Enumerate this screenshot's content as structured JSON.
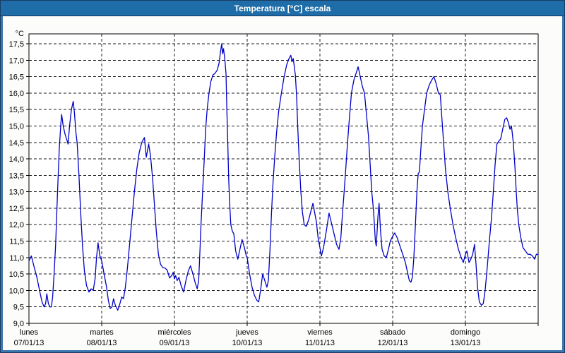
{
  "window": {
    "title": "Temperatura [°C] escala"
  },
  "colors": {
    "titlebar_bg": "#1E6DA8",
    "title_text": "#FFFFFF",
    "frame_outer": "#1A3C63",
    "frame_inner": "#3B76AD",
    "content_bg": "#FCFCFA",
    "plot_bg": "#FFFFFF",
    "plot_border": "#000000",
    "grid_line": "#1C1C1C",
    "axis_text": "#000000",
    "series_line": "#0000C8"
  },
  "chart_data": {
    "type": "line",
    "title": "Temperatura [°C] escala",
    "ylabel": "°C",
    "ylim": [
      9.0,
      17.8
    ],
    "grid": "dashed",
    "legend": "none",
    "y_ticks": [
      {
        "v": 9.0,
        "label": "9,0"
      },
      {
        "v": 9.5,
        "label": "9,5"
      },
      {
        "v": 10.0,
        "label": "10,0"
      },
      {
        "v": 10.5,
        "label": "10,5"
      },
      {
        "v": 11.0,
        "label": "11,0"
      },
      {
        "v": 11.5,
        "label": "11,5"
      },
      {
        "v": 12.0,
        "label": "12,0"
      },
      {
        "v": 12.5,
        "label": "12,5"
      },
      {
        "v": 13.0,
        "label": "13,0"
      },
      {
        "v": 13.5,
        "label": "13,5"
      },
      {
        "v": 14.0,
        "label": "14,0"
      },
      {
        "v": 14.5,
        "label": "14,5"
      },
      {
        "v": 15.0,
        "label": "15,0"
      },
      {
        "v": 15.5,
        "label": "15,5"
      },
      {
        "v": 16.0,
        "label": "16,0"
      },
      {
        "v": 16.5,
        "label": "16,5"
      },
      {
        "v": 17.0,
        "label": "17,0"
      },
      {
        "v": 17.5,
        "label": "17,5"
      }
    ],
    "x_axis": {
      "hours_total": 168,
      "days": [
        {
          "name": "lunes",
          "date": "07/01/13"
        },
        {
          "name": "martes",
          "date": "08/01/13"
        },
        {
          "name": "miércoles",
          "date": "09/01/13"
        },
        {
          "name": "jueves",
          "date": "10/01/13"
        },
        {
          "name": "viernes",
          "date": "11/01/13"
        },
        {
          "name": "sábado",
          "date": "12/01/13"
        },
        {
          "name": "domingo",
          "date": "13/01/13"
        }
      ]
    },
    "series": [
      {
        "name": "Temperatura [°C]",
        "color": "#0000C8",
        "points_hours_temp": [
          [
            0,
            10.9
          ],
          [
            0.8,
            11.05
          ],
          [
            1.6,
            10.75
          ],
          [
            2.6,
            10.4
          ],
          [
            3.6,
            9.95
          ],
          [
            4.3,
            9.65
          ],
          [
            5,
            9.5
          ],
          [
            5.5,
            9.6
          ],
          [
            5.9,
            9.9
          ],
          [
            6.4,
            9.6
          ],
          [
            6.9,
            9.5
          ],
          [
            7.4,
            9.5
          ],
          [
            7.8,
            9.8
          ],
          [
            8.3,
            10.5
          ],
          [
            8.8,
            11.4
          ],
          [
            9.4,
            12.9
          ],
          [
            10,
            14.3
          ],
          [
            10.5,
            15.05
          ],
          [
            10.8,
            15.35
          ],
          [
            11.3,
            15.0
          ],
          [
            11.9,
            14.75
          ],
          [
            12.6,
            14.55
          ],
          [
            12.9,
            14.45
          ],
          [
            13.4,
            15.0
          ],
          [
            14,
            15.5
          ],
          [
            14.6,
            15.75
          ],
          [
            15,
            15.4
          ],
          [
            15.5,
            14.8
          ],
          [
            15.9,
            14.5
          ],
          [
            16.5,
            13.5
          ],
          [
            17.1,
            12.3
          ],
          [
            17.7,
            11.3
          ],
          [
            18.3,
            10.6
          ],
          [
            19,
            10.15
          ],
          [
            19.8,
            9.95
          ],
          [
            20.5,
            10.05
          ],
          [
            21.2,
            10.0
          ],
          [
            21.8,
            10.35
          ],
          [
            22.3,
            11.0
          ],
          [
            22.8,
            11.45
          ],
          [
            23.4,
            11.05
          ],
          [
            24,
            10.9
          ],
          [
            24.8,
            10.5
          ],
          [
            25.6,
            10.1
          ],
          [
            26.2,
            9.7
          ],
          [
            26.8,
            9.45
          ],
          [
            27.4,
            9.5
          ],
          [
            27.9,
            9.75
          ],
          [
            28.5,
            9.55
          ],
          [
            29.3,
            9.4
          ],
          [
            30,
            9.6
          ],
          [
            30.6,
            9.8
          ],
          [
            31.2,
            9.75
          ],
          [
            31.8,
            10.1
          ],
          [
            32.5,
            10.7
          ],
          [
            33.2,
            11.4
          ],
          [
            34,
            12.2
          ],
          [
            34.8,
            13.0
          ],
          [
            35.6,
            13.7
          ],
          [
            36.4,
            14.2
          ],
          [
            37.2,
            14.5
          ],
          [
            38.1,
            14.65
          ],
          [
            38.7,
            14.05
          ],
          [
            39.5,
            14.45
          ],
          [
            40.1,
            14.1
          ],
          [
            40.8,
            13.4
          ],
          [
            41.4,
            12.6
          ],
          [
            42,
            11.8
          ],
          [
            42.7,
            11.1
          ],
          [
            43.4,
            10.8
          ],
          [
            44.1,
            10.7
          ],
          [
            44.9,
            10.68
          ],
          [
            45.6,
            10.62
          ],
          [
            46.4,
            10.38
          ],
          [
            47.1,
            10.45
          ],
          [
            47.6,
            10.55
          ],
          [
            48,
            10.35
          ],
          [
            48.4,
            10.45
          ],
          [
            48.9,
            10.3
          ],
          [
            49.5,
            10.4
          ],
          [
            50.2,
            10.15
          ],
          [
            51,
            9.95
          ],
          [
            51.8,
            10.3
          ],
          [
            52.6,
            10.6
          ],
          [
            53.3,
            10.75
          ],
          [
            54.1,
            10.5
          ],
          [
            54.8,
            10.25
          ],
          [
            55.5,
            10.05
          ],
          [
            56,
            10.3
          ],
          [
            56.4,
            11.2
          ],
          [
            56.8,
            12.1
          ],
          [
            57.3,
            13.0
          ],
          [
            57.8,
            13.95
          ],
          [
            58.3,
            14.9
          ],
          [
            58.8,
            15.5
          ],
          [
            59.4,
            16.0
          ],
          [
            60,
            16.35
          ],
          [
            60.7,
            16.55
          ],
          [
            61.4,
            16.6
          ],
          [
            62.1,
            16.7
          ],
          [
            62.7,
            16.9
          ],
          [
            63.2,
            17.25
          ],
          [
            63.6,
            17.5
          ],
          [
            63.9,
            17.2
          ],
          [
            64.2,
            17.35
          ],
          [
            64.6,
            17.05
          ],
          [
            65,
            16.6
          ],
          [
            65.3,
            15.5
          ],
          [
            65.6,
            14.5
          ],
          [
            65.9,
            13.4
          ],
          [
            66.2,
            12.7
          ],
          [
            66.6,
            12.0
          ],
          [
            67.1,
            11.8
          ],
          [
            67.6,
            11.72
          ],
          [
            68.2,
            11.2
          ],
          [
            68.9,
            10.95
          ],
          [
            69.6,
            11.25
          ],
          [
            70.3,
            11.55
          ],
          [
            71.1,
            11.3
          ],
          [
            71.7,
            11.05
          ],
          [
            72,
            11.0
          ],
          [
            72.8,
            10.5
          ],
          [
            73.6,
            10.1
          ],
          [
            74.4,
            9.85
          ],
          [
            75.2,
            9.7
          ],
          [
            75.8,
            9.65
          ],
          [
            76.4,
            10.0
          ],
          [
            77.1,
            10.5
          ],
          [
            77.8,
            10.3
          ],
          [
            78.5,
            10.1
          ],
          [
            79,
            10.3
          ],
          [
            79.5,
            11.2
          ],
          [
            80,
            12.3
          ],
          [
            80.5,
            13.25
          ],
          [
            81.1,
            14.1
          ],
          [
            81.7,
            14.8
          ],
          [
            82.4,
            15.45
          ],
          [
            83.2,
            15.95
          ],
          [
            84.1,
            16.45
          ],
          [
            85,
            16.85
          ],
          [
            85.8,
            17.05
          ],
          [
            86.4,
            17.15
          ],
          [
            86.8,
            16.95
          ],
          [
            87.2,
            17.05
          ],
          [
            87.9,
            16.55
          ],
          [
            88.3,
            15.9
          ],
          [
            88.7,
            14.9
          ],
          [
            89.2,
            13.9
          ],
          [
            89.7,
            13.0
          ],
          [
            90.2,
            12.4
          ],
          [
            90.8,
            12.0
          ],
          [
            91.5,
            11.95
          ],
          [
            92.3,
            12.15
          ],
          [
            93,
            12.4
          ],
          [
            93.7,
            12.65
          ],
          [
            94.3,
            12.35
          ],
          [
            94.8,
            12.1
          ],
          [
            95.4,
            11.6
          ],
          [
            96,
            11.3
          ],
          [
            96.5,
            11.05
          ],
          [
            97.2,
            11.3
          ],
          [
            98.1,
            11.8
          ],
          [
            99,
            12.35
          ],
          [
            99.8,
            12.05
          ],
          [
            100.7,
            11.7
          ],
          [
            101.5,
            11.4
          ],
          [
            102.3,
            11.25
          ],
          [
            102.9,
            11.6
          ],
          [
            103.4,
            12.3
          ],
          [
            104,
            13.0
          ],
          [
            104.6,
            13.8
          ],
          [
            105.1,
            14.5
          ],
          [
            105.7,
            15.2
          ],
          [
            106.4,
            16.0
          ],
          [
            107.2,
            16.4
          ],
          [
            108.1,
            16.65
          ],
          [
            108.6,
            16.8
          ],
          [
            109.3,
            16.5
          ],
          [
            110,
            16.2
          ],
          [
            110.7,
            16.0
          ],
          [
            111.4,
            15.3
          ],
          [
            112,
            14.7
          ],
          [
            112.6,
            13.8
          ],
          [
            113.1,
            13.0
          ],
          [
            113.7,
            12.4
          ],
          [
            114.3,
            11.5
          ],
          [
            114.6,
            11.35
          ],
          [
            115.1,
            12.2
          ],
          [
            115.5,
            12.65
          ],
          [
            116,
            11.8
          ],
          [
            116.5,
            11.25
          ],
          [
            117.2,
            11.05
          ],
          [
            117.9,
            11.0
          ],
          [
            118.6,
            11.25
          ],
          [
            119.2,
            11.5
          ],
          [
            120,
            11.65
          ],
          [
            120.7,
            11.75
          ],
          [
            121.5,
            11.6
          ],
          [
            122.4,
            11.35
          ],
          [
            123.3,
            11.1
          ],
          [
            124.2,
            10.85
          ],
          [
            124.9,
            10.55
          ],
          [
            125.5,
            10.3
          ],
          [
            126,
            10.25
          ],
          [
            126.5,
            10.4
          ],
          [
            127,
            11.0
          ],
          [
            127.5,
            12.0
          ],
          [
            128,
            13.0
          ],
          [
            128.4,
            13.55
          ],
          [
            128.8,
            13.6
          ],
          [
            129.3,
            14.3
          ],
          [
            129.8,
            15.0
          ],
          [
            130.5,
            15.5
          ],
          [
            131.2,
            16.0
          ],
          [
            132.1,
            16.25
          ],
          [
            132.9,
            16.4
          ],
          [
            133.6,
            16.5
          ],
          [
            134.3,
            16.3
          ],
          [
            135.1,
            16.0
          ],
          [
            135.7,
            15.95
          ],
          [
            136.2,
            15.3
          ],
          [
            136.8,
            14.5
          ],
          [
            137.4,
            13.7
          ],
          [
            138.2,
            13.0
          ],
          [
            139,
            12.5
          ],
          [
            139.9,
            12.0
          ],
          [
            140.8,
            11.6
          ],
          [
            141.7,
            11.25
          ],
          [
            142.6,
            11.0
          ],
          [
            143.3,
            10.85
          ],
          [
            144,
            11.1
          ],
          [
            144.5,
            11.2
          ],
          [
            145.2,
            10.85
          ],
          [
            145.8,
            10.95
          ],
          [
            146.4,
            11.1
          ],
          [
            147,
            11.4
          ],
          [
            147.5,
            10.8
          ],
          [
            148,
            10.1
          ],
          [
            148.6,
            9.65
          ],
          [
            149.3,
            9.55
          ],
          [
            149.9,
            9.6
          ],
          [
            150.5,
            10.0
          ],
          [
            151.2,
            10.7
          ],
          [
            151.9,
            11.5
          ],
          [
            152.6,
            12.2
          ],
          [
            153.2,
            13.0
          ],
          [
            153.8,
            13.85
          ],
          [
            154.4,
            14.45
          ],
          [
            155.1,
            14.55
          ],
          [
            155.6,
            14.6
          ],
          [
            156.3,
            14.9
          ],
          [
            157,
            15.2
          ],
          [
            157.6,
            15.25
          ],
          [
            158.2,
            15.1
          ],
          [
            158.7,
            14.9
          ],
          [
            159.2,
            15.0
          ],
          [
            159.8,
            14.5
          ],
          [
            160.3,
            13.8
          ],
          [
            160.7,
            13.1
          ],
          [
            161.1,
            12.5
          ],
          [
            161.6,
            12.0
          ],
          [
            162.3,
            11.6
          ],
          [
            163,
            11.3
          ],
          [
            163.8,
            11.2
          ],
          [
            164.6,
            11.1
          ],
          [
            165.4,
            11.1
          ],
          [
            166.1,
            11.05
          ],
          [
            166.8,
            10.95
          ],
          [
            167.4,
            11.1
          ],
          [
            168,
            11.1
          ]
        ]
      }
    ]
  }
}
